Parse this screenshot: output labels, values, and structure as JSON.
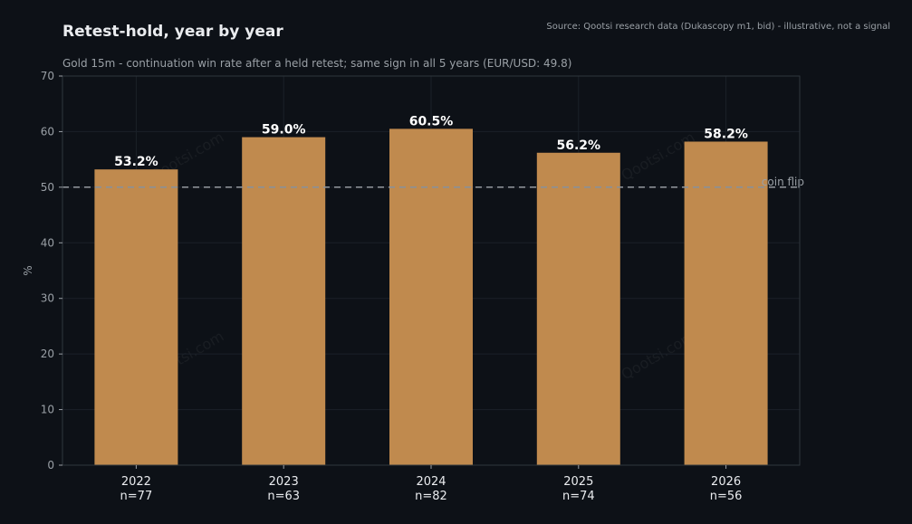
{
  "title": "Retest-hold, year by year",
  "subtitle": "Gold 15m - continuation win rate after a held retest; same sign in all 5 years (EUR/USD: 49.8)",
  "source": "Source: Qootsi research data (Dukascopy m1, bid) - illustrative, not a signal",
  "watermark": "Qootsi.com",
  "colors": {
    "background": "#0d1117",
    "bar": "#c08a4e",
    "grid": "#1b2129",
    "reference_line": "#8b9096"
  },
  "chart_data": {
    "type": "bar",
    "categories": [
      "2022",
      "2023",
      "2024",
      "2025",
      "2026"
    ],
    "sample_sizes": [
      "n=77",
      "n=63",
      "n=82",
      "n=74",
      "n=56"
    ],
    "values": [
      53.2,
      59.0,
      60.5,
      56.2,
      58.2
    ],
    "data_labels": [
      "53.2%",
      "59.0%",
      "60.5%",
      "56.2%",
      "58.2%"
    ],
    "ylabel": "%",
    "ylim": [
      0,
      70
    ],
    "yticks": [
      0,
      10,
      20,
      30,
      40,
      50,
      60,
      70
    ],
    "reference_line": {
      "value": 50,
      "label": "coin flip",
      "style": "dashed"
    },
    "grid": true
  }
}
